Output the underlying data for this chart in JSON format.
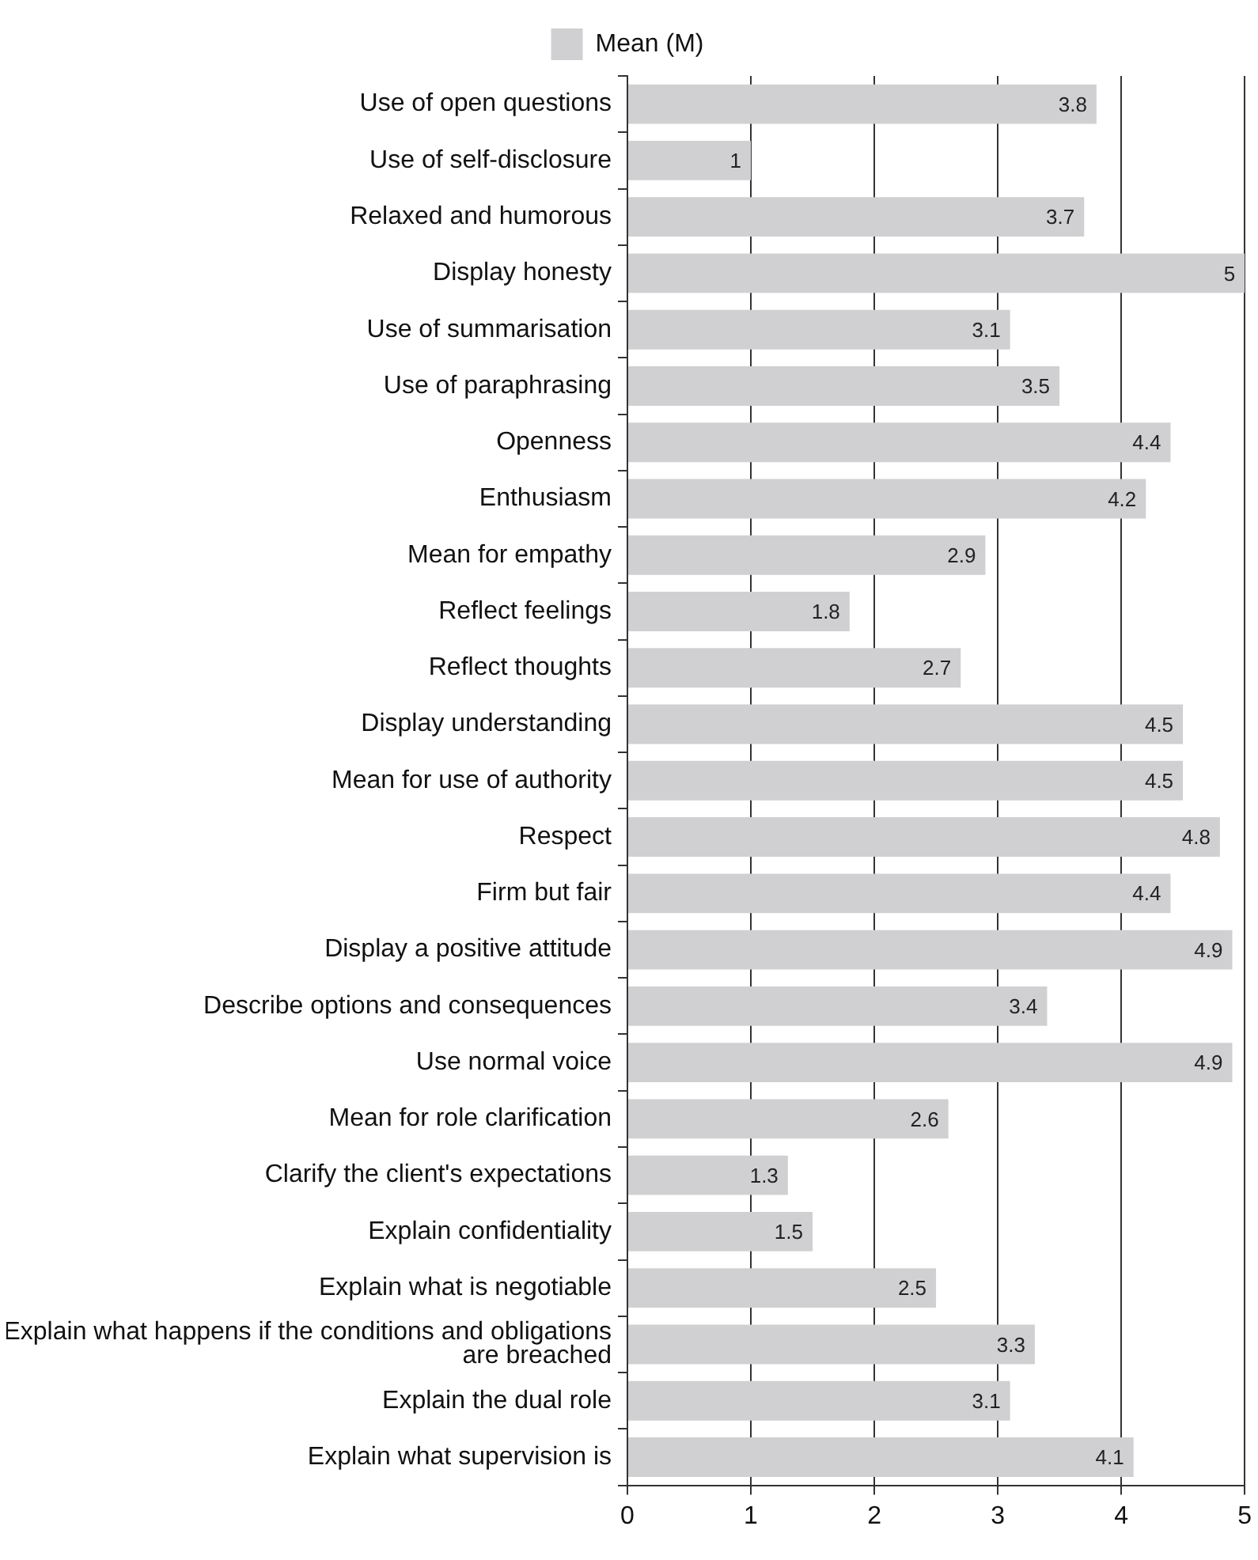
{
  "chart_data": {
    "type": "bar",
    "orientation": "horizontal",
    "categories": [
      "Use of open questions",
      "Use of self-disclosure",
      "Relaxed and humorous",
      "Display honesty",
      "Use of summarisation",
      "Use of paraphrasing",
      "Openness",
      "Enthusiasm",
      "Mean for empathy",
      "Reflect feelings",
      "Reflect thoughts",
      "Display understanding",
      "Mean for use of authority",
      "Respect",
      "Firm but fair",
      "Display a positive attitude",
      "Describe options and consequences",
      "Use normal voice",
      "Mean for role clarification",
      "Clarify the client's expectations",
      "Explain confidentiality",
      "Explain what is negotiable",
      "Explain what happens if the conditions and obligations are breached",
      "Explain the dual role",
      "Explain what supervision is"
    ],
    "series": [
      {
        "name": "Mean (M)",
        "color": "#d0d0d2",
        "values": [
          3.8,
          1,
          3.7,
          5,
          3.1,
          3.5,
          4.4,
          4.2,
          2.9,
          1.8,
          2.7,
          4.5,
          4.5,
          4.8,
          4.4,
          4.9,
          3.4,
          4.9,
          2.6,
          1.3,
          1.5,
          2.5,
          3.3,
          3.1,
          4.1
        ]
      }
    ],
    "xlim": [
      0,
      5
    ],
    "xticks": [
      0,
      1,
      2,
      3,
      4,
      5
    ],
    "grid": "x",
    "legend": "top",
    "data_labels": true
  }
}
